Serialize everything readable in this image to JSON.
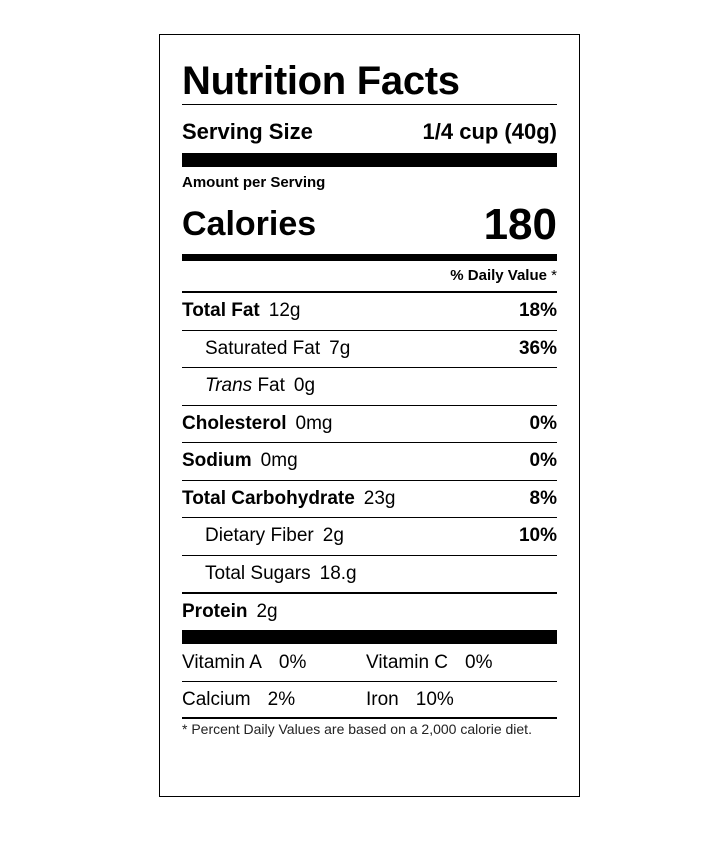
{
  "title": "Nutrition Facts",
  "serving": {
    "label": "Serving Size",
    "value": "1/4 cup (40g)"
  },
  "amount_per_serving": "Amount per Serving",
  "calories": {
    "label": "Calories",
    "value": "180"
  },
  "daily_value_header": {
    "label": "% Daily Value",
    "asterisk": "*"
  },
  "nutrients": [
    {
      "name": "Total Fat",
      "amount": "12g",
      "dv": "18%"
    },
    {
      "name": "Saturated Fat",
      "amount": "7g",
      "dv": "36%"
    },
    {
      "name_italic": "Trans",
      "name": "Fat",
      "amount": "0g",
      "dv": ""
    },
    {
      "name": "Cholesterol",
      "amount": "0mg",
      "dv": "0%"
    },
    {
      "name": "Sodium",
      "amount": "0mg",
      "dv": "0%"
    },
    {
      "name": "Total Carbohydrate",
      "amount": "23g",
      "dv": "8%"
    },
    {
      "name": "Dietary Fiber",
      "amount": "2g",
      "dv": "10%"
    },
    {
      "name": "Total Sugars",
      "amount": "18.g",
      "dv": ""
    },
    {
      "name": "Protein",
      "amount": "2g",
      "dv": ""
    }
  ],
  "vitamins": [
    {
      "name": "Vitamin A",
      "pct": "0%"
    },
    {
      "name": "Vitamin C",
      "pct": "0%"
    },
    {
      "name": "Calcium",
      "pct": "2%"
    },
    {
      "name": "Iron",
      "pct": "10%"
    }
  ],
  "footnote": "* Percent Daily Values are based on a 2,000 calorie diet."
}
